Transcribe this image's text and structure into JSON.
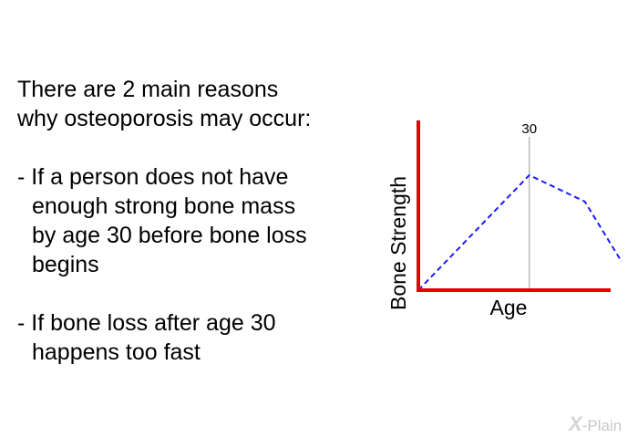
{
  "text": {
    "intro_line1": "There are 2 main reasons",
    "intro_line2": "why osteoporosis may occur:",
    "bullet1_line1": "- If a person does not have",
    "bullet1_line2": "enough strong bone mass",
    "bullet1_line3": "by age 30 before bone loss",
    "bullet1_line4": "begins",
    "bullet2_line1": "- If bone loss after age 30",
    "bullet2_line2": "happens too fast"
  },
  "logo": {
    "text": "X-Plain",
    "mark": "X",
    "rest": "-Plain"
  },
  "chart_data": {
    "type": "line",
    "title": "",
    "xlabel": "Age",
    "ylabel": "Bone Strength",
    "marker_label": "30",
    "marker_x": 30,
    "series": [
      {
        "x": [
          0,
          30,
          45,
          55
        ],
        "y": [
          0,
          61,
          47,
          15
        ],
        "style": "dashed",
        "color": "#1a1aff"
      }
    ],
    "xlim": [
      0,
      52
    ],
    "ylim": [
      0,
      90
    ],
    "axis_color": "#e60000",
    "marker_line_color": "#999999",
    "grid": false
  }
}
